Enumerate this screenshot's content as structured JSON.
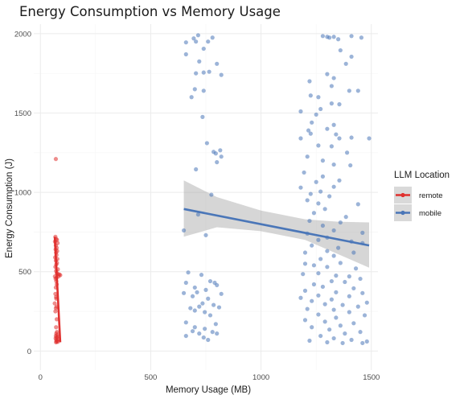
{
  "chart_data": {
    "type": "scatter",
    "title": "Energy Consumption vs Memory Usage",
    "xlabel": "Memory Usage (MB)",
    "ylabel": "Energy Consumption (J)",
    "xlim": [
      -30,
      1530
    ],
    "ylim": [
      -120,
      2060
    ],
    "x_ticks": [
      0,
      500,
      1000,
      1500
    ],
    "y_ticks": [
      0,
      500,
      1000,
      1500,
      2000
    ],
    "x_minor_ticks": [
      250,
      750,
      1250
    ],
    "y_minor_ticks": [
      250,
      750,
      1250,
      1750
    ],
    "grid": true,
    "legend": {
      "title": "LLM Location",
      "position": "right",
      "entries": [
        {
          "label": "remote",
          "color": "#e0302e"
        },
        {
          "label": "mobile",
          "color": "#4a76b8"
        }
      ]
    },
    "series": [
      {
        "name": "remote",
        "color": "#e0302e",
        "points": [
          [
            70,
            1210
          ],
          [
            68,
            720
          ],
          [
            72,
            705
          ],
          [
            75,
            700
          ],
          [
            66,
            690
          ],
          [
            78,
            680
          ],
          [
            70,
            665
          ],
          [
            74,
            650
          ],
          [
            69,
            640
          ],
          [
            76,
            630
          ],
          [
            71,
            620
          ],
          [
            73,
            605
          ],
          [
            67,
            590
          ],
          [
            77,
            580
          ],
          [
            70,
            570
          ],
          [
            75,
            555
          ],
          [
            72,
            545
          ],
          [
            68,
            530
          ],
          [
            79,
            515
          ],
          [
            71,
            505
          ],
          [
            74,
            490
          ],
          [
            80,
            485
          ],
          [
            86,
            482
          ],
          [
            90,
            478
          ],
          [
            66,
            470
          ],
          [
            73,
            462
          ],
          [
            82,
            470
          ],
          [
            69,
            455
          ],
          [
            72,
            440
          ],
          [
            74,
            420
          ],
          [
            70,
            400
          ],
          [
            68,
            360
          ],
          [
            71,
            340
          ],
          [
            72,
            330
          ],
          [
            65,
            300
          ],
          [
            73,
            280
          ],
          [
            70,
            270
          ],
          [
            68,
            250
          ],
          [
            74,
            200
          ],
          [
            71,
            150
          ],
          [
            75,
            120
          ],
          [
            72,
            110
          ],
          [
            76,
            100
          ],
          [
            70,
            95
          ],
          [
            78,
            90
          ],
          [
            74,
            85
          ],
          [
            69,
            80
          ],
          [
            80,
            75
          ],
          [
            72,
            70
          ],
          [
            76,
            65
          ],
          [
            73,
            60
          ],
          [
            79,
            58
          ],
          [
            71,
            55
          ]
        ],
        "trend": {
          "x": [
            65,
            90
          ],
          "y": [
            720,
            55
          ]
        }
      },
      {
        "name": "mobile",
        "color": "#4a76b8",
        "points": [
          [
            715,
            1990
          ],
          [
            695,
            1970
          ],
          [
            780,
            1975
          ],
          [
            660,
            1945
          ],
          [
            705,
            1950
          ],
          [
            760,
            1950
          ],
          [
            740,
            1905
          ],
          [
            660,
            1870
          ],
          [
            720,
            1825
          ],
          [
            800,
            1810
          ],
          [
            765,
            1760
          ],
          [
            740,
            1755
          ],
          [
            705,
            1750
          ],
          [
            820,
            1740
          ],
          [
            700,
            1650
          ],
          [
            740,
            1640
          ],
          [
            685,
            1600
          ],
          [
            735,
            1475
          ],
          [
            755,
            1310
          ],
          [
            815,
            1265
          ],
          [
            785,
            1255
          ],
          [
            795,
            1245
          ],
          [
            820,
            1225
          ],
          [
            800,
            1190
          ],
          [
            705,
            1145
          ],
          [
            775,
            985
          ],
          [
            650,
            760
          ],
          [
            715,
            860
          ],
          [
            750,
            730
          ],
          [
            670,
            495
          ],
          [
            730,
            480
          ],
          [
            770,
            440
          ],
          [
            790,
            430
          ],
          [
            660,
            430
          ],
          [
            800,
            415
          ],
          [
            700,
            400
          ],
          [
            750,
            385
          ],
          [
            710,
            370
          ],
          [
            650,
            365
          ],
          [
            820,
            360
          ],
          [
            690,
            345
          ],
          [
            760,
            330
          ],
          [
            735,
            300
          ],
          [
            785,
            290
          ],
          [
            720,
            280
          ],
          [
            810,
            275
          ],
          [
            680,
            270
          ],
          [
            700,
            255
          ],
          [
            745,
            245
          ],
          [
            770,
            225
          ],
          [
            660,
            180
          ],
          [
            795,
            170
          ],
          [
            700,
            150
          ],
          [
            745,
            140
          ],
          [
            690,
            125
          ],
          [
            780,
            120
          ],
          [
            720,
            110
          ],
          [
            800,
            110
          ],
          [
            660,
            95
          ],
          [
            740,
            85
          ],
          [
            760,
            70
          ],
          [
            1280,
            1985
          ],
          [
            1300,
            1980
          ],
          [
            1330,
            1980
          ],
          [
            1310,
            1975
          ],
          [
            1350,
            1965
          ],
          [
            1410,
            1985
          ],
          [
            1455,
            1975
          ],
          [
            1360,
            1895
          ],
          [
            1410,
            1855
          ],
          [
            1385,
            1810
          ],
          [
            1300,
            1745
          ],
          [
            1330,
            1720
          ],
          [
            1220,
            1700
          ],
          [
            1320,
            1670
          ],
          [
            1400,
            1640
          ],
          [
            1440,
            1640
          ],
          [
            1225,
            1610
          ],
          [
            1260,
            1600
          ],
          [
            1320,
            1560
          ],
          [
            1355,
            1555
          ],
          [
            1270,
            1525
          ],
          [
            1180,
            1510
          ],
          [
            1250,
            1490
          ],
          [
            1230,
            1440
          ],
          [
            1330,
            1425
          ],
          [
            1300,
            1400
          ],
          [
            1215,
            1390
          ],
          [
            1225,
            1370
          ],
          [
            1340,
            1365
          ],
          [
            1180,
            1340
          ],
          [
            1355,
            1340
          ],
          [
            1410,
            1345
          ],
          [
            1490,
            1340
          ],
          [
            1260,
            1295
          ],
          [
            1320,
            1290
          ],
          [
            1390,
            1250
          ],
          [
            1210,
            1225
          ],
          [
            1280,
            1200
          ],
          [
            1330,
            1175
          ],
          [
            1405,
            1170
          ],
          [
            1195,
            1125
          ],
          [
            1280,
            1100
          ],
          [
            1355,
            1075
          ],
          [
            1250,
            1065
          ],
          [
            1330,
            1035
          ],
          [
            1180,
            1030
          ],
          [
            1270,
            1005
          ],
          [
            1225,
            990
          ],
          [
            1310,
            975
          ],
          [
            1210,
            950
          ],
          [
            1260,
            930
          ],
          [
            1440,
            925
          ],
          [
            1290,
            895
          ],
          [
            1240,
            870
          ],
          [
            1385,
            845
          ],
          [
            1220,
            820
          ],
          [
            1360,
            810
          ],
          [
            1280,
            790
          ],
          [
            1330,
            760
          ],
          [
            1460,
            745
          ],
          [
            1210,
            740
          ],
          [
            1300,
            715
          ],
          [
            1260,
            700
          ],
          [
            1410,
            690
          ],
          [
            1460,
            680
          ],
          [
            1230,
            665
          ],
          [
            1350,
            650
          ],
          [
            1300,
            630
          ],
          [
            1200,
            620
          ],
          [
            1420,
            620
          ],
          [
            1330,
            600
          ],
          [
            1270,
            580
          ],
          [
            1360,
            555
          ],
          [
            1200,
            550
          ],
          [
            1240,
            540
          ],
          [
            1300,
            530
          ],
          [
            1430,
            520
          ],
          [
            1260,
            490
          ],
          [
            1190,
            485
          ],
          [
            1340,
            475
          ],
          [
            1400,
            470
          ],
          [
            1450,
            455
          ],
          [
            1320,
            440
          ],
          [
            1240,
            420
          ],
          [
            1380,
            435
          ],
          [
            1280,
            405
          ],
          [
            1420,
            395
          ],
          [
            1200,
            380
          ],
          [
            1340,
            370
          ],
          [
            1460,
            365
          ],
          [
            1260,
            350
          ],
          [
            1400,
            345
          ],
          [
            1180,
            335
          ],
          [
            1320,
            325
          ],
          [
            1230,
            315
          ],
          [
            1480,
            305
          ],
          [
            1290,
            295
          ],
          [
            1370,
            290
          ],
          [
            1440,
            280
          ],
          [
            1210,
            265
          ],
          [
            1330,
            260
          ],
          [
            1400,
            245
          ],
          [
            1260,
            230
          ],
          [
            1470,
            225
          ],
          [
            1340,
            210
          ],
          [
            1200,
            195
          ],
          [
            1290,
            185
          ],
          [
            1420,
            175
          ],
          [
            1360,
            160
          ],
          [
            1230,
            150
          ],
          [
            1310,
            135
          ],
          [
            1450,
            120
          ],
          [
            1380,
            110
          ],
          [
            1270,
            95
          ],
          [
            1330,
            80
          ],
          [
            1410,
            70
          ],
          [
            1220,
            65
          ],
          [
            1480,
            60
          ],
          [
            1300,
            55
          ],
          [
            1370,
            50
          ],
          [
            1460,
            50
          ]
        ],
        "trend": {
          "x": [
            650,
            1490
          ],
          "y": [
            895,
            665
          ]
        },
        "band": {
          "x": [
            650,
            800,
            1000,
            1200,
            1350,
            1490
          ],
          "lower": [
            720,
            780,
            755,
            700,
            610,
            525
          ],
          "upper": [
            1075,
            970,
            885,
            830,
            815,
            810
          ]
        }
      }
    ]
  }
}
